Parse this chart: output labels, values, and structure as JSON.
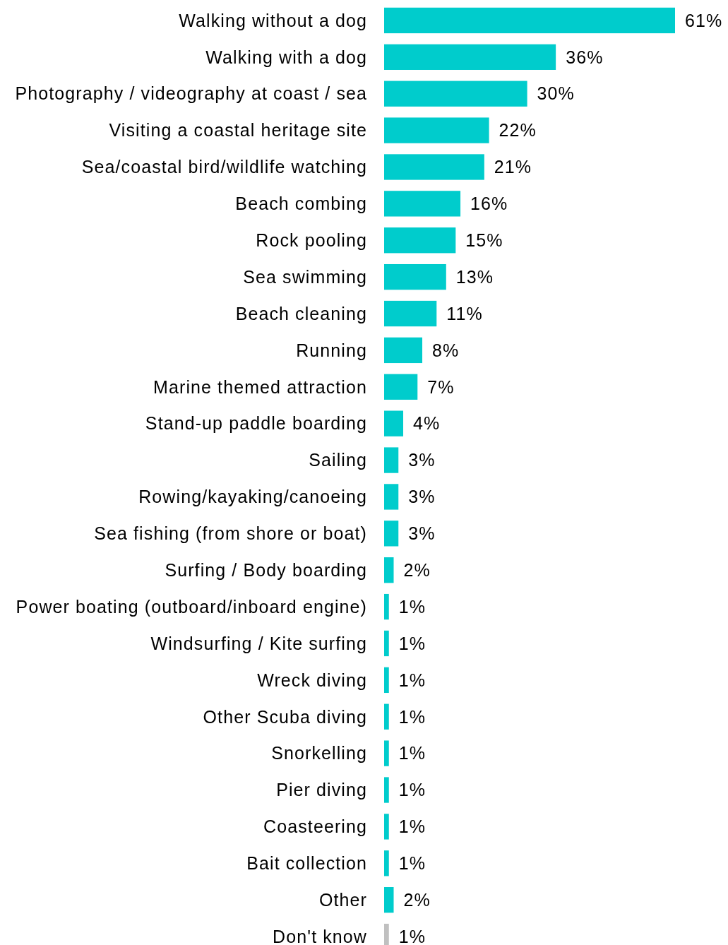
{
  "chart_data": {
    "type": "bar",
    "orientation": "horizontal",
    "categories": [
      "Walking without a dog",
      "Walking with a dog",
      "Photography / videography at coast / sea",
      "Visiting a coastal heritage site",
      "Sea/coastal bird/wildlife watching",
      "Beach combing",
      "Rock pooling",
      "Sea swimming",
      "Beach cleaning",
      "Running",
      "Marine themed attraction",
      "Stand-up paddle boarding",
      "Sailing",
      "Rowing/kayaking/canoeing",
      "Sea fishing (from shore or boat)",
      "Surfing / Body boarding",
      "Power boating (outboard/inboard engine)",
      "Windsurfing / Kite surfing",
      "Wreck diving",
      "Other Scuba diving",
      "Snorkelling",
      "Pier diving",
      "Coasteering",
      "Bait collection",
      "Other",
      "Don't know"
    ],
    "values": [
      61,
      36,
      30,
      22,
      21,
      16,
      15,
      13,
      11,
      8,
      7,
      4,
      3,
      3,
      3,
      2,
      1,
      1,
      1,
      1,
      1,
      1,
      1,
      1,
      2,
      1
    ],
    "value_labels": [
      "61%",
      "36%",
      "30%",
      "22%",
      "21%",
      "16%",
      "15%",
      "13%",
      "11%",
      "8%",
      "7%",
      "4%",
      "3%",
      "3%",
      "3%",
      "2%",
      "1%",
      "1%",
      "1%",
      "1%",
      "1%",
      "1%",
      "1%",
      "1%",
      "2%",
      "1%"
    ],
    "colors": [
      "#00cccc",
      "#00cccc",
      "#00cccc",
      "#00cccc",
      "#00cccc",
      "#00cccc",
      "#00cccc",
      "#00cccc",
      "#00cccc",
      "#00cccc",
      "#00cccc",
      "#00cccc",
      "#00cccc",
      "#00cccc",
      "#00cccc",
      "#00cccc",
      "#00cccc",
      "#00cccc",
      "#00cccc",
      "#00cccc",
      "#00cccc",
      "#00cccc",
      "#00cccc",
      "#00cccc",
      "#00cccc",
      "#c0c0c0"
    ]
  }
}
